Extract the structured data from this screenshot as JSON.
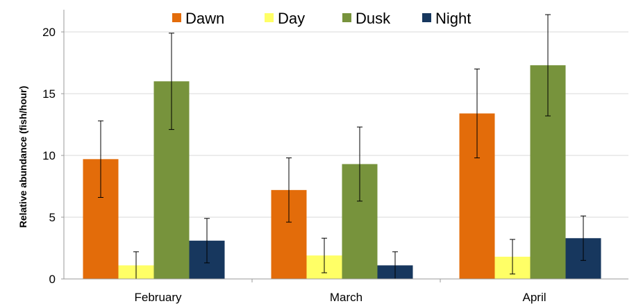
{
  "chart_data": {
    "type": "bar",
    "title": "",
    "xlabel": "",
    "ylabel": "Relative abundance (fish/hour)",
    "categories": [
      "February",
      "March",
      "April"
    ],
    "ylim": [
      0,
      20
    ],
    "yticks": [
      0,
      5,
      10,
      15,
      20
    ],
    "grid": true,
    "legend_position": "top",
    "series": [
      {
        "name": "Dawn",
        "color": "#e36c0a",
        "values": [
          9.7,
          7.2,
          13.4
        ],
        "error": [
          3.1,
          2.6,
          3.6
        ]
      },
      {
        "name": "Day",
        "color": "#ffff66",
        "values": [
          1.1,
          1.9,
          1.8
        ],
        "error": [
          1.1,
          1.4,
          1.4
        ]
      },
      {
        "name": "Dusk",
        "color": "#77933c",
        "values": [
          16.0,
          9.3,
          17.3
        ],
        "error": [
          3.9,
          3.0,
          4.1
        ]
      },
      {
        "name": "Night",
        "color": "#17375e",
        "values": [
          3.1,
          1.1,
          3.3
        ],
        "error": [
          1.8,
          1.1,
          1.8
        ]
      }
    ]
  }
}
